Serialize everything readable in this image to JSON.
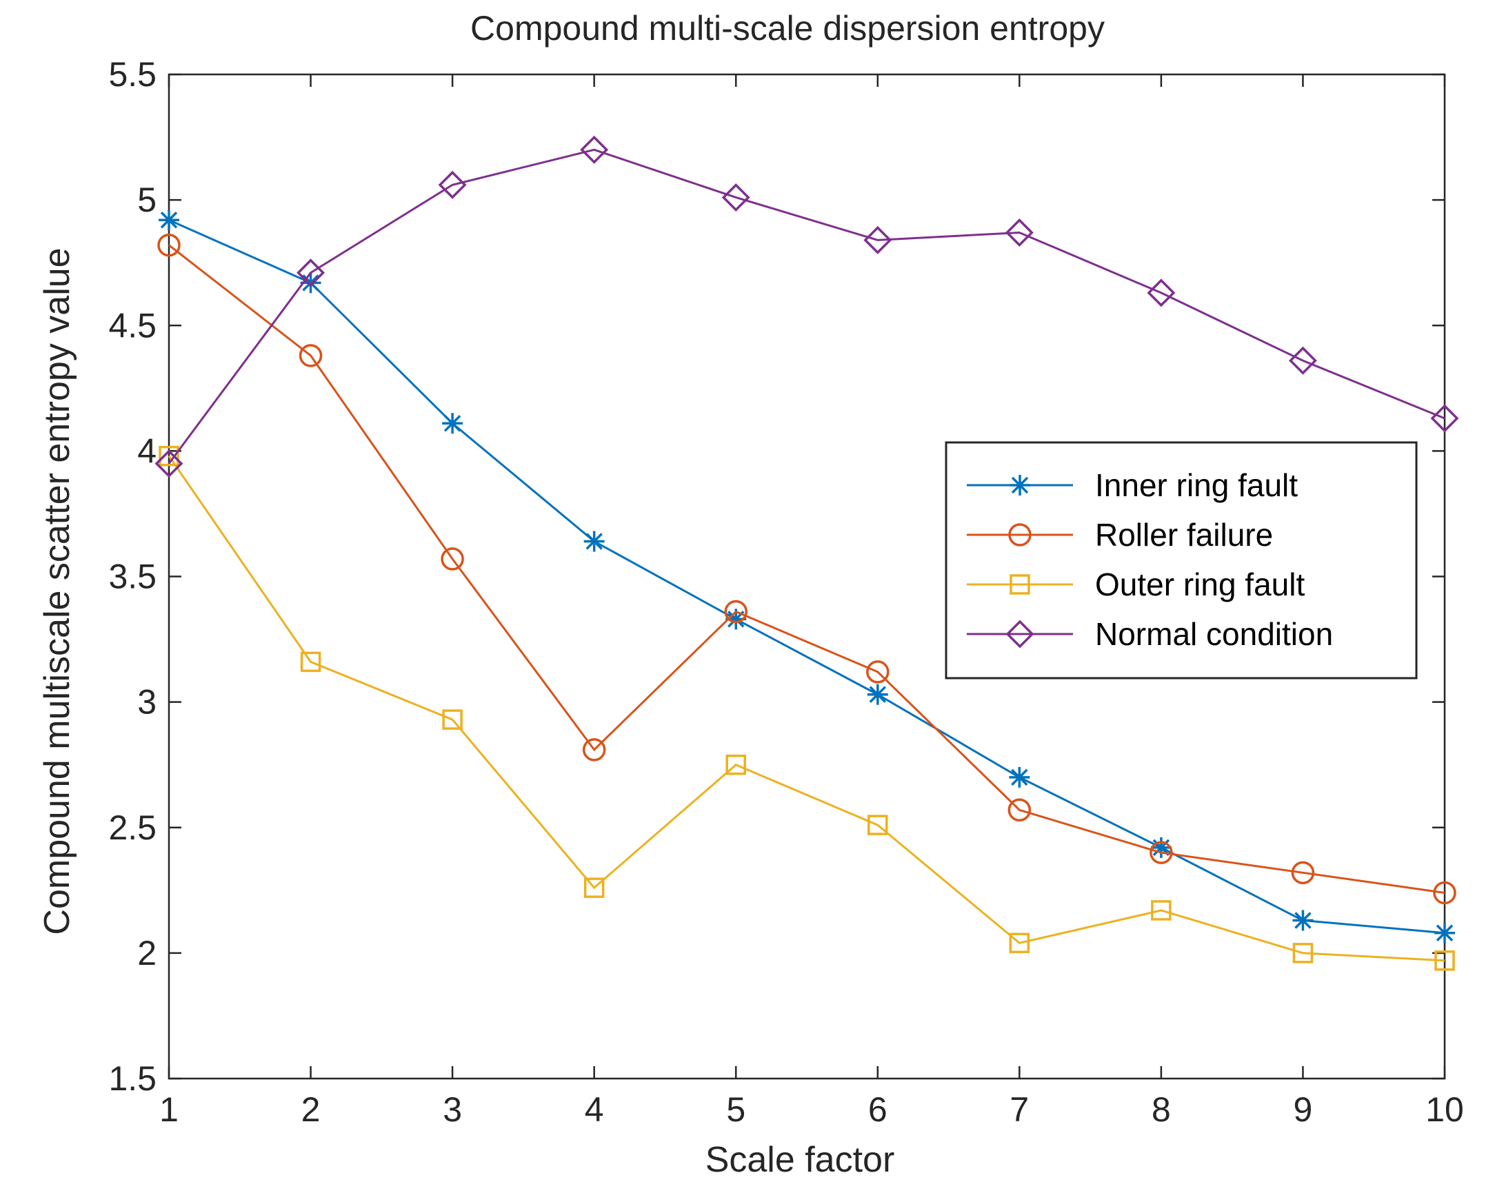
{
  "chart_data": {
    "type": "line",
    "title": "Compound multi-scale dispersion entropy",
    "xlabel": "Scale factor",
    "ylabel": "Compound multiscale scatter entropy value",
    "x": [
      1,
      2,
      3,
      4,
      5,
      6,
      7,
      8,
      9,
      10
    ],
    "xlim": [
      1,
      10
    ],
    "ylim": [
      1.5,
      5.5
    ],
    "xticks": [
      "1",
      "2",
      "3",
      "4",
      "5",
      "6",
      "7",
      "8",
      "9",
      "10"
    ],
    "yticks": [
      "1.5",
      "2",
      "2.5",
      "3",
      "3.5",
      "4",
      "4.5",
      "5",
      "5.5"
    ],
    "grid": false,
    "legend_position": "center-right",
    "series": [
      {
        "name": "Inner ring fault",
        "color": "#0072BD",
        "marker": "asterisk",
        "values": [
          4.92,
          4.67,
          4.11,
          3.64,
          3.33,
          3.03,
          2.7,
          2.42,
          2.13,
          2.08
        ]
      },
      {
        "name": "Roller failure",
        "color": "#D95319",
        "marker": "circle",
        "values": [
          4.82,
          4.38,
          3.57,
          2.81,
          3.36,
          3.12,
          2.57,
          2.4,
          2.32,
          2.24
        ]
      },
      {
        "name": "Outer ring fault",
        "color": "#EDB120",
        "marker": "square",
        "values": [
          3.98,
          3.16,
          2.93,
          2.26,
          2.75,
          2.51,
          2.04,
          2.17,
          2.0,
          1.97
        ]
      },
      {
        "name": "Normal condition",
        "color": "#7E2F8E",
        "marker": "diamond",
        "values": [
          3.95,
          4.71,
          5.06,
          5.2,
          5.01,
          4.84,
          4.87,
          4.63,
          4.36,
          4.13
        ]
      }
    ]
  }
}
